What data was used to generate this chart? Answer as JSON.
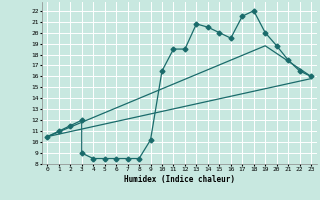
{
  "title": "",
  "xlabel": "Humidex (Indice chaleur)",
  "ylabel": "",
  "bg_color": "#c8e8e0",
  "grid_color": "#ffffff",
  "line_color": "#1a6b6b",
  "xlim": [
    -0.5,
    23.5
  ],
  "ylim": [
    8,
    22.8
  ],
  "xticks": [
    0,
    1,
    2,
    3,
    4,
    5,
    6,
    7,
    8,
    9,
    10,
    11,
    12,
    13,
    14,
    15,
    16,
    17,
    18,
    19,
    20,
    21,
    22,
    23
  ],
  "yticks": [
    8,
    9,
    10,
    11,
    12,
    13,
    14,
    15,
    16,
    17,
    18,
    19,
    20,
    21,
    22
  ],
  "line1_x": [
    0,
    1,
    2,
    3,
    3,
    4,
    5,
    6,
    7,
    8,
    9,
    10,
    11,
    12,
    13,
    14,
    15,
    16,
    17,
    18,
    19,
    20,
    21,
    22,
    23
  ],
  "line1_y": [
    10.5,
    11,
    11.5,
    12,
    9,
    8.5,
    8.5,
    8.5,
    8.5,
    8.5,
    10.2,
    16.5,
    18.5,
    18.5,
    20.8,
    20.5,
    20,
    19.5,
    21.5,
    22,
    20,
    18.8,
    17.5,
    16.5,
    16
  ],
  "line2_x": [
    0,
    19,
    23
  ],
  "line2_y": [
    10.5,
    18.8,
    16
  ],
  "line3_x": [
    0,
    23
  ],
  "line3_y": [
    10.5,
    15.8
  ],
  "marker": "D",
  "markersize": 2.5
}
